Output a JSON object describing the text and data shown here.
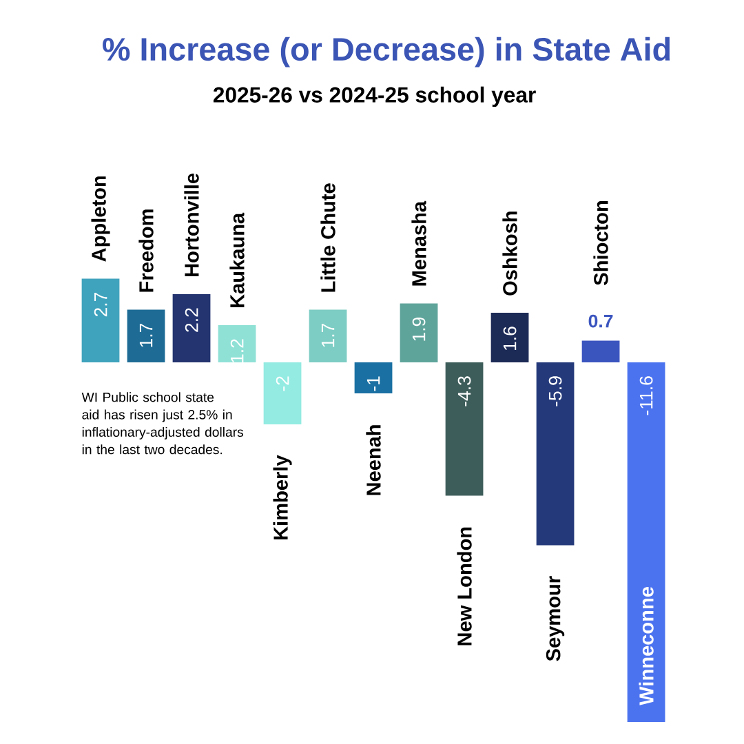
{
  "chart_data": {
    "type": "bar",
    "title": "% Increase (or Decrease) in State Aid",
    "subtitle": "2025-26 vs 2024-25 school year",
    "categories": [
      "Appleton",
      "Freedom",
      "Hortonville",
      "Kaukauna",
      "Kimberly",
      "Little Chute",
      "Neenah",
      "Menasha",
      "New London",
      "Oshkosh",
      "Seymour",
      "Shiocton",
      "Winneconne"
    ],
    "values": [
      2.7,
      1.7,
      2.2,
      1.2,
      -2,
      1.7,
      -1,
      1.9,
      -4.3,
      1.6,
      -5.9,
      0.7,
      -11.6
    ],
    "colors": [
      "#40a3bd",
      "#1e6c96",
      "#233470",
      "#8fe1d6",
      "#93ebe2",
      "#7dcdc4",
      "#1a70a2",
      "#5fa49b",
      "#3d5d5a",
      "#1c2a56",
      "#24397a",
      "#3b55bf",
      "#4c73ef"
    ],
    "data_labels": true,
    "annotations": [
      "WI Public school state aid has risen just 2.5% in inflationary-adjusted dollars in the last two decades."
    ]
  }
}
